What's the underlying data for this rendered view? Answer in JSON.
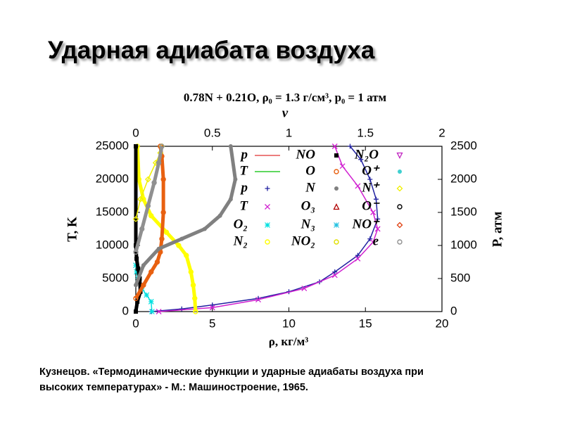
{
  "slide": {
    "heading": "Ударная адиабата воздуха",
    "caption": [
      "Кузнецов. «Термодинамические функции и ударные адиабаты воздуха при",
      "высоких температурах» - М.: Машиностроение, 1965."
    ]
  },
  "chart_data": {
    "type": "scatter",
    "title": "0.78N + 0.21O, ρ₀ = 1.3 г/см³, p₀ = 1 атм",
    "xlabel": "ρ, кг/м³",
    "x2label": "ν",
    "ylabel": "T, K",
    "y2label": "P, атм",
    "xlim": [
      0,
      20
    ],
    "xticks": [
      0,
      5,
      10,
      15,
      20
    ],
    "x2lim": [
      0,
      2
    ],
    "x2ticks": [
      0,
      0.5,
      1,
      1.5,
      2
    ],
    "ylim": [
      0,
      25000
    ],
    "yticks": [
      0,
      5000,
      10000,
      15000,
      20000,
      25000
    ],
    "y2lim": [
      0,
      2500
    ],
    "y2ticks": [
      0,
      500,
      1000,
      1500,
      2000,
      2500
    ],
    "series": [
      {
        "name": "p",
        "color": "#e03030",
        "marker": "line"
      },
      {
        "name": "T",
        "color": "#00c000",
        "marker": "line"
      },
      {
        "name": "p",
        "color": "#2020a0",
        "marker": "plus",
        "axis": "y2",
        "x": [
          1,
          3,
          5,
          8,
          10,
          12,
          13,
          14.5,
          15.3,
          15.8,
          15.7,
          15.3,
          14.7,
          14
        ],
        "values": [
          0,
          40,
          100,
          200,
          300,
          450,
          600,
          850,
          1100,
          1400,
          1700,
          2000,
          2300,
          2500
        ]
      },
      {
        "name": "T",
        "color": "#d020d0",
        "marker": "x",
        "x": [
          1.5,
          5,
          8,
          11,
          13,
          14.5,
          15.5,
          15.8,
          15.5,
          14.5,
          13.5,
          13
        ],
        "values": [
          0,
          600,
          1800,
          3500,
          5500,
          8000,
          10500,
          12500,
          15000,
          19000,
          22000,
          25000
        ]
      },
      {
        "name": "O₂",
        "color": "#00e0e0",
        "marker": "star",
        "xaxis": "x2",
        "x": [
          0.105,
          0.1,
          0.07,
          0.04,
          0.015,
          0.005,
          0
        ],
        "values": [
          0,
          1500,
          2500,
          3500,
          5000,
          6000,
          7000
        ]
      },
      {
        "name": "N₂",
        "color": "#ffff00",
        "marker": "circle",
        "xaxis": "x2",
        "x": [
          0.39,
          0.385,
          0.375,
          0.36,
          0.33,
          0.28,
          0.2,
          0.1,
          0.05,
          0.02,
          0.01
        ],
        "values": [
          0,
          2000,
          4000,
          6000,
          8500,
          10000,
          12000,
          14500,
          17000,
          20000,
          25000
        ]
      },
      {
        "name": "NO",
        "color": "#000000",
        "marker": "square",
        "xaxis": "x2",
        "x": [
          0,
          0.01,
          0.03,
          0.025,
          0.015,
          0.005,
          0,
          0
        ],
        "values": [
          0,
          1500,
          3000,
          5000,
          6500,
          8000,
          10000,
          25000
        ]
      },
      {
        "name": "O",
        "color": "#e86010",
        "marker": "circle",
        "xaxis": "x2",
        "x": [
          0,
          0.05,
          0.1,
          0.14,
          0.16,
          0.17,
          0.18,
          0.18,
          0.17,
          0.16
        ],
        "values": [
          2000,
          4000,
          6000,
          7500,
          9000,
          11000,
          15000,
          20000,
          23500,
          25000
        ]
      },
      {
        "name": "N",
        "color": "#808080",
        "marker": "dot",
        "xaxis": "x2",
        "x": [
          0,
          0.05,
          0.15,
          0.3,
          0.45,
          0.55,
          0.62,
          0.65,
          0.62
        ],
        "values": [
          4000,
          7000,
          9500,
          11000,
          12500,
          14500,
          17000,
          20000,
          25000
        ]
      },
      {
        "name": "O₃",
        "color": "#b00000",
        "marker": "triangle"
      },
      {
        "name": "N₃",
        "color": "#20c0e0",
        "marker": "star"
      },
      {
        "name": "NO₂",
        "color": "#e0e000",
        "marker": "circle"
      },
      {
        "name": "N₂O",
        "color": "#c020c0",
        "marker": "triangle-down"
      },
      {
        "name": "O⁺",
        "color": "#40d0d0",
        "marker": "dot"
      },
      {
        "name": "N⁺",
        "color": "#f0f000",
        "marker": "diamond",
        "xaxis": "x2",
        "x": [
          0,
          0.03,
          0.08,
          0.13,
          0.16,
          0.17
        ],
        "values": [
          14000,
          17000,
          20000,
          22500,
          24000,
          25000
        ]
      },
      {
        "name": "O⁻",
        "color": "#000000",
        "marker": "circle"
      },
      {
        "name": "NO⁺",
        "color": "#e04010",
        "marker": "diamond"
      },
      {
        "name": "e",
        "color": "#909090",
        "marker": "circle",
        "xaxis": "x2",
        "x": [
          0,
          0.04,
          0.08,
          0.12,
          0.15,
          0.17
        ],
        "values": [
          9000,
          12500,
          16000,
          19500,
          22500,
          25000
        ]
      }
    ]
  }
}
